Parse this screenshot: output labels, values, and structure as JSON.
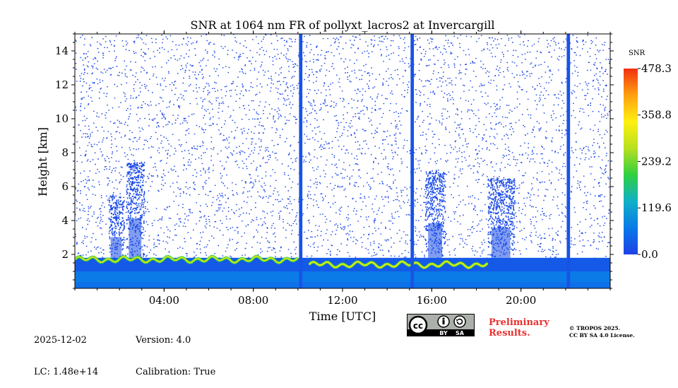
{
  "chart_data": {
    "type": "heatmap",
    "title": "SNR at 1064 nm FR of pollyxt_lacros2 at Invercargill",
    "xlabel": "Time [UTC]",
    "ylabel": "Height [km]",
    "xlim": [
      0,
      24
    ],
    "ylim": [
      0,
      15
    ],
    "x_ticks": [
      {
        "value": 4,
        "label": "04:00"
      },
      {
        "value": 8,
        "label": "08:00"
      },
      {
        "value": 12,
        "label": "12:00"
      },
      {
        "value": 16,
        "label": "16:00"
      },
      {
        "value": 20,
        "label": "20:00"
      }
    ],
    "y_ticks": [
      {
        "value": 2,
        "label": "2"
      },
      {
        "value": 4,
        "label": "4"
      },
      {
        "value": 6,
        "label": "6"
      },
      {
        "value": 8,
        "label": "8"
      },
      {
        "value": 10,
        "label": "10"
      },
      {
        "value": 12,
        "label": "12"
      },
      {
        "value": 14,
        "label": "14"
      }
    ],
    "colorbar": {
      "label": "SNR",
      "min": 0.0,
      "max": 478.3,
      "ticks": [
        {
          "value": 0.0,
          "label": "0.0"
        },
        {
          "value": 119.6,
          "label": "119.6"
        },
        {
          "value": 239.2,
          "label": "239.2"
        },
        {
          "value": 358.8,
          "label": "358.8"
        },
        {
          "value": 478.3,
          "label": "478.3"
        }
      ],
      "colors": [
        "#1e40e6",
        "#0a7ae8",
        "#10b0c8",
        "#30d040",
        "#b8e020",
        "#fff010",
        "#ffa010",
        "#f03010"
      ]
    },
    "layers": [
      {
        "kind": "layer",
        "t_start": 0.0,
        "t_end": 24.0,
        "h_top": 1.0,
        "snr": 70
      },
      {
        "kind": "aerosol_layer",
        "t_start": 0.0,
        "t_end": 10.0,
        "h_center": 1.7,
        "snr": 300
      },
      {
        "kind": "aerosol_layer",
        "t_start": 10.5,
        "t_end": 18.5,
        "h_center": 1.4,
        "snr": 320
      }
    ],
    "high_signal_columns": [
      {
        "t_start": 10.05,
        "t_end": 10.2,
        "h_top": 15.0
      },
      {
        "t_start": 15.05,
        "t_end": 15.2,
        "h_top": 15.0
      },
      {
        "t_start": 22.05,
        "t_end": 22.2,
        "h_top": 15.0
      }
    ],
    "clouds": [
      {
        "t_start": 1.5,
        "t_end": 2.2,
        "h_top": 5.5
      },
      {
        "t_start": 2.3,
        "t_end": 3.1,
        "h_top": 7.5
      },
      {
        "t_start": 15.7,
        "t_end": 16.6,
        "h_top": 7.0
      },
      {
        "t_start": 18.5,
        "t_end": 19.7,
        "h_top": 6.5
      }
    ]
  },
  "footer": {
    "date": "2025-12-02",
    "lc": "LC: 1.48e+14",
    "version": "Version: 4.0",
    "calibration": "Calibration: True",
    "license_badge": "CC BY SA",
    "preliminary_line1": "Preliminary",
    "preliminary_line2": "Results.",
    "copyright_line1": "© TROPOS 2025.",
    "copyright_line2": "CC BY SA 4.0 License."
  }
}
